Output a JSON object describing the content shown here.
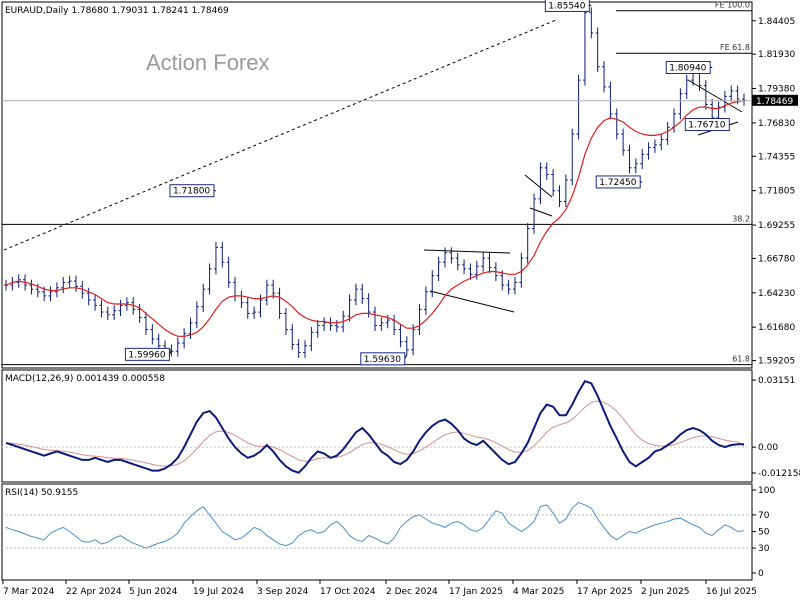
{
  "header": {
    "symbol_line": "EURAUD,Daily  1.78680 1.79031 1.78241 1.78469"
  },
  "watermark": "Action Forex",
  "colors": {
    "candles": "#0b1b7a",
    "ma": "#e0201a",
    "macd": "#0b1b7a",
    "signal": "#d88f8f",
    "rsi": "#4a90d0",
    "price_tag_bg": "#000000"
  },
  "chart_data": [
    {
      "type": "candlestick",
      "title": "EURAUD,Daily",
      "ohlc_last": {
        "open": 1.7868,
        "high": 1.79031,
        "low": 1.78241,
        "close": 1.78469
      },
      "ylim": [
        1.588,
        1.855
      ],
      "y_ticks": [
        "1.84405",
        "1.81930",
        "1.79380",
        "1.76830",
        "1.74355",
        "1.71805",
        "1.69255",
        "1.66780",
        "1.64230",
        "1.61680",
        "1.59205"
      ],
      "x_ticks": [
        "7 Mar 2024",
        "22 Apr 2024",
        "5 Jun 2024",
        "19 Jul 2024",
        "3 Sep 2024",
        "17 Oct 2024",
        "2 Dec 2024",
        "17 Jan 2025",
        "4 Mar 2025",
        "17 Apr 2025",
        "2 Jun 2025",
        "16 Jul 2025"
      ],
      "current_price_label": "1.78469",
      "close_series": [
        1.648,
        1.65,
        1.652,
        1.648,
        1.645,
        1.643,
        1.64,
        1.643,
        1.646,
        1.65,
        1.651,
        1.647,
        1.642,
        1.637,
        1.633,
        1.628,
        1.626,
        1.629,
        1.633,
        1.635,
        1.63,
        1.624,
        1.615,
        1.608,
        1.603,
        1.6,
        1.599,
        1.605,
        1.612,
        1.62,
        1.632,
        1.645,
        1.66,
        1.676,
        1.665,
        1.65,
        1.64,
        1.635,
        1.627,
        1.628,
        1.637,
        1.648,
        1.642,
        1.627,
        1.615,
        1.604,
        1.598,
        1.603,
        1.613,
        1.618,
        1.62,
        1.618,
        1.617,
        1.625,
        1.637,
        1.645,
        1.638,
        1.628,
        1.618,
        1.62,
        1.622,
        1.615,
        1.606,
        1.6,
        1.615,
        1.63,
        1.643,
        1.655,
        1.665,
        1.672,
        1.668,
        1.663,
        1.66,
        1.656,
        1.662,
        1.668,
        1.661,
        1.655,
        1.648,
        1.645,
        1.65,
        1.668,
        1.69,
        1.712,
        1.735,
        1.73,
        1.718,
        1.71,
        1.726,
        1.76,
        1.8,
        1.85,
        1.835,
        1.81,
        1.795,
        1.775,
        1.76,
        1.748,
        1.735,
        1.738,
        1.745,
        1.75,
        1.752,
        1.756,
        1.765,
        1.775,
        1.79,
        1.8,
        1.805,
        1.796,
        1.782,
        1.772,
        1.78,
        1.788,
        1.792,
        1.786,
        1.785
      ],
      "ma_series": [
        1.648,
        1.65,
        1.651,
        1.65,
        1.649,
        1.647,
        1.645,
        1.644,
        1.644,
        1.645,
        1.646,
        1.646,
        1.645,
        1.643,
        1.641,
        1.638,
        1.635,
        1.634,
        1.634,
        1.634,
        1.633,
        1.631,
        1.627,
        1.623,
        1.619,
        1.615,
        1.612,
        1.61,
        1.61,
        1.611,
        1.613,
        1.617,
        1.623,
        1.63,
        1.636,
        1.639,
        1.64,
        1.64,
        1.639,
        1.638,
        1.638,
        1.639,
        1.64,
        1.639,
        1.636,
        1.632,
        1.627,
        1.624,
        1.622,
        1.621,
        1.621,
        1.62,
        1.62,
        1.621,
        1.623,
        1.626,
        1.627,
        1.627,
        1.626,
        1.625,
        1.624,
        1.622,
        1.619,
        1.616,
        1.616,
        1.618,
        1.622,
        1.627,
        1.633,
        1.64,
        1.645,
        1.648,
        1.651,
        1.653,
        1.655,
        1.657,
        1.658,
        1.658,
        1.657,
        1.656,
        1.656,
        1.658,
        1.663,
        1.67,
        1.68,
        1.688,
        1.694,
        1.698,
        1.704,
        1.714,
        1.728,
        1.745,
        1.757,
        1.765,
        1.77,
        1.772,
        1.771,
        1.769,
        1.765,
        1.762,
        1.76,
        1.759,
        1.759,
        1.76,
        1.762,
        1.765,
        1.769,
        1.774,
        1.778,
        1.78,
        1.78,
        1.779,
        1.779,
        1.781,
        1.783,
        1.784,
        1.785
      ],
      "annotations": [
        {
          "text": "1.85540",
          "price": 1.8554,
          "bar": 92
        },
        {
          "text": "1.80940",
          "price": 1.8094,
          "bar": 111
        },
        {
          "text": "1.76710",
          "price": 1.7671,
          "bar": 114
        },
        {
          "text": "1.72450",
          "price": 1.7245,
          "bar": 100
        },
        {
          "text": "1.71800",
          "price": 1.718,
          "bar": 33
        },
        {
          "text": "1.59960",
          "price": 1.5996,
          "bar": 26
        },
        {
          "text": "1.59630",
          "price": 1.5963,
          "bar": 63
        }
      ],
      "levels": [
        {
          "text": "FE 100.0",
          "price": 1.8515
        },
        {
          "text": "FE 61.8",
          "price": 1.82
        },
        {
          "text": "38.2",
          "price": 1.693
        },
        {
          "text": "61.8",
          "price": 1.589
        }
      ]
    },
    {
      "type": "line",
      "title": "MACD(12,26,9) 0.001439 0.000558",
      "ylim": [
        -0.0145,
        0.0325
      ],
      "y_ticks": [
        "0.03151",
        "0.00",
        "-0.012158"
      ],
      "series": [
        {
          "name": "MACD",
          "values": [
            0.002,
            0.001,
            0.0,
            -0.001,
            -0.002,
            -0.003,
            -0.004,
            -0.003,
            -0.002,
            -0.003,
            -0.004,
            -0.005,
            -0.006,
            -0.006,
            -0.005,
            -0.006,
            -0.007,
            -0.006,
            -0.006,
            -0.007,
            -0.008,
            -0.009,
            -0.01,
            -0.011,
            -0.011,
            -0.01,
            -0.008,
            -0.005,
            0.0,
            0.006,
            0.012,
            0.016,
            0.017,
            0.014,
            0.009,
            0.004,
            0.0,
            -0.003,
            -0.005,
            -0.004,
            -0.002,
            0.001,
            -0.002,
            -0.006,
            -0.009,
            -0.011,
            -0.012,
            -0.009,
            -0.005,
            -0.002,
            -0.003,
            -0.005,
            -0.004,
            -0.001,
            0.003,
            0.007,
            0.009,
            0.006,
            0.002,
            -0.002,
            -0.004,
            -0.007,
            -0.008,
            -0.006,
            -0.002,
            0.003,
            0.007,
            0.01,
            0.012,
            0.013,
            0.011,
            0.008,
            0.004,
            0.002,
            0.001,
            0.003,
            0.0,
            -0.003,
            -0.006,
            -0.008,
            -0.007,
            -0.003,
            0.002,
            0.009,
            0.016,
            0.02,
            0.019,
            0.015,
            0.015,
            0.02,
            0.026,
            0.031,
            0.03,
            0.024,
            0.017,
            0.01,
            0.004,
            -0.002,
            -0.007,
            -0.009,
            -0.007,
            -0.005,
            -0.002,
            -0.001,
            0.001,
            0.003,
            0.006,
            0.008,
            0.009,
            0.008,
            0.006,
            0.003,
            0.001,
            0.0,
            0.001,
            0.0014,
            0.0014
          ]
        },
        {
          "name": "Signal",
          "values": [
            0.002,
            0.0018,
            0.0014,
            0.0009,
            0.0003,
            -0.0004,
            -0.0011,
            -0.0015,
            -0.0016,
            -0.0019,
            -0.0023,
            -0.0029,
            -0.0035,
            -0.004,
            -0.0042,
            -0.0045,
            -0.005,
            -0.0052,
            -0.0053,
            -0.0057,
            -0.0061,
            -0.0067,
            -0.0074,
            -0.0081,
            -0.0087,
            -0.009,
            -0.0088,
            -0.008,
            -0.0064,
            -0.0039,
            -0.0007,
            0.0026,
            0.0055,
            0.0072,
            0.0076,
            0.0069,
            0.0055,
            0.0038,
            0.002,
            0.0008,
            0.0002,
            0.0004,
            0.0,
            -0.0012,
            -0.0028,
            -0.0044,
            -0.006,
            -0.0066,
            -0.0063,
            -0.0054,
            -0.005,
            -0.005,
            -0.0048,
            -0.004,
            -0.0026,
            -0.0007,
            0.0012,
            0.0021,
            0.0021,
            0.0013,
            0.0002,
            -0.0012,
            -0.0026,
            -0.0033,
            -0.003,
            -0.0018,
            0.0,
            0.002,
            0.004,
            0.0058,
            0.0068,
            0.0071,
            0.0065,
            0.0056,
            0.0047,
            0.0043,
            0.0034,
            0.0021,
            0.0005,
            -0.0012,
            -0.0023,
            -0.0025,
            -0.0016,
            0.0006,
            0.0037,
            0.007,
            0.0094,
            0.0105,
            0.0114,
            0.0131,
            0.0157,
            0.0188,
            0.021,
            0.0217,
            0.0211,
            0.0194,
            0.0168,
            0.0135,
            0.0096,
            0.0058,
            0.0033,
            0.0016,
            0.0009,
            0.0005,
            0.0006,
            0.0011,
            0.0021,
            0.0033,
            0.0045,
            0.0052,
            0.0054,
            0.0049,
            0.0041,
            0.0033,
            0.0028,
            0.0025,
            0.0006
          ]
        }
      ]
    },
    {
      "type": "line",
      "title": "RSI(14) 50.9155",
      "ylim": [
        0,
        100
      ],
      "y_ticks": [
        "100",
        "70",
        "50",
        "30",
        "0"
      ],
      "series": [
        {
          "name": "RSI",
          "values": [
            55,
            52,
            50,
            47,
            44,
            42,
            40,
            48,
            52,
            55,
            50,
            44,
            38,
            37,
            40,
            35,
            37,
            42,
            45,
            40,
            36,
            33,
            30,
            33,
            36,
            38,
            42,
            48,
            60,
            68,
            75,
            80,
            70,
            60,
            50,
            45,
            40,
            42,
            48,
            55,
            52,
            45,
            40,
            35,
            33,
            36,
            45,
            50,
            52,
            48,
            50,
            58,
            62,
            55,
            45,
            40,
            38,
            45,
            42,
            38,
            35,
            42,
            55,
            62,
            68,
            70,
            65,
            60,
            58,
            55,
            60,
            62,
            58,
            52,
            50,
            55,
            65,
            75,
            72,
            60,
            55,
            50,
            55,
            62,
            80,
            82,
            72,
            60,
            65,
            78,
            85,
            82,
            78,
            65,
            55,
            45,
            40,
            45,
            50,
            48,
            52,
            55,
            58,
            60,
            62,
            65,
            66,
            62,
            58,
            55,
            48,
            45,
            52,
            58,
            55,
            50,
            51
          ]
        }
      ]
    }
  ]
}
